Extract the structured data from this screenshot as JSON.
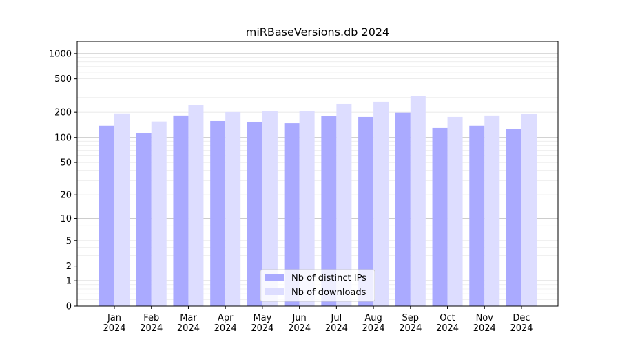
{
  "chart_data": {
    "type": "bar",
    "title": "miRBaseVersions.db 2024",
    "xlabel": "",
    "ylabel": "",
    "yscale": "symlog (log10(1+y))",
    "ylim": [
      0,
      1400
    ],
    "yticks": [
      0,
      1,
      2,
      5,
      10,
      20,
      50,
      100,
      200,
      500,
      1000
    ],
    "grid": true,
    "legend_position": "bottom-center",
    "categories": [
      "Jan\n2024",
      "Feb\n2024",
      "Mar\n2024",
      "Apr\n2024",
      "May\n2024",
      "Jun\n2024",
      "Jul\n2024",
      "Aug\n2024",
      "Sep\n2024",
      "Oct\n2024",
      "Nov\n2024",
      "Dec\n2024"
    ],
    "series": [
      {
        "name": "Nb of distinct IPs",
        "color": "#aaaaff",
        "values": [
          138,
          112,
          183,
          157,
          154,
          148,
          180,
          176,
          198,
          130,
          138,
          125
        ]
      },
      {
        "name": "Nb of downloads",
        "color": "#ddddff",
        "values": [
          194,
          155,
          243,
          201,
          205,
          205,
          252,
          267,
          311,
          176,
          183,
          190
        ]
      }
    ]
  }
}
